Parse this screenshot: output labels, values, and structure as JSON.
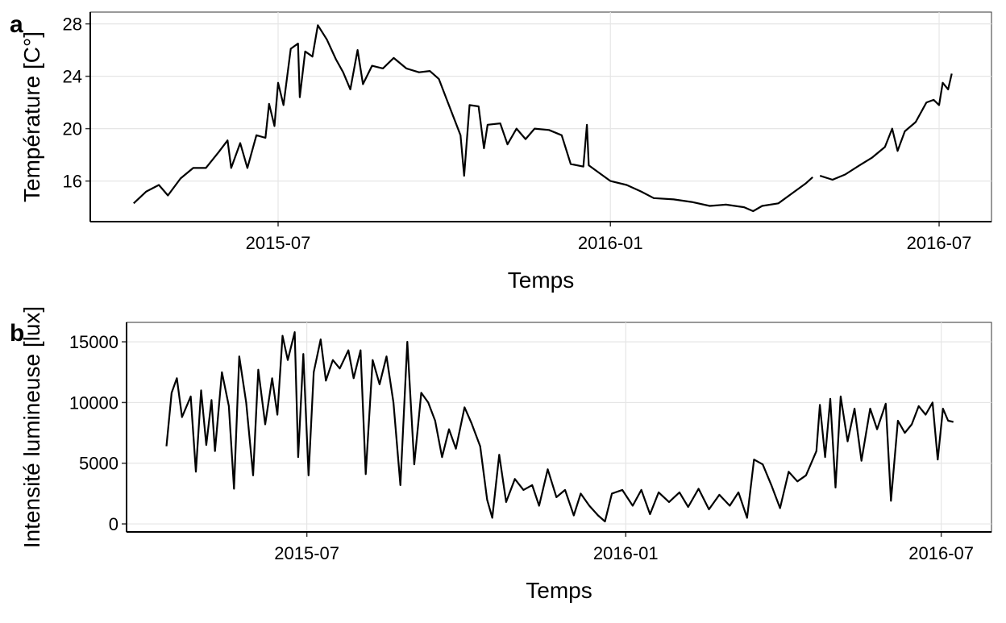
{
  "chart_data": [
    {
      "type": "line",
      "panel_label": "a",
      "xlabel": "Temps",
      "ylabel": "Température [C°]",
      "color": "#000000",
      "grid": true,
      "xlim": [
        "2015-03-19",
        "2016-07-30"
      ],
      "xticks": [
        {
          "value": "2015-07-01",
          "label": "2015-07"
        },
        {
          "value": "2016-01-01",
          "label": "2016-01"
        },
        {
          "value": "2016-07-01",
          "label": "2016-07"
        }
      ],
      "ylim": [
        12.9,
        28.9
      ],
      "yticks": [
        16,
        20,
        24,
        28
      ],
      "x": [
        "2015-04-12",
        "2015-04-19",
        "2015-04-26",
        "2015-05-01",
        "2015-05-08",
        "2015-05-15",
        "2015-05-22",
        "2015-05-29",
        "2015-06-03",
        "2015-06-05",
        "2015-06-10",
        "2015-06-14",
        "2015-06-19",
        "2015-06-24",
        "2015-06-26",
        "2015-06-29",
        "2015-07-01",
        "2015-07-04",
        "2015-07-08",
        "2015-07-12",
        "2015-07-13",
        "2015-07-16",
        "2015-07-20",
        "2015-07-23",
        "2015-07-28",
        "2015-08-02",
        "2015-08-06",
        "2015-08-10",
        "2015-08-14",
        "2015-08-17",
        "2015-08-22",
        "2015-08-28",
        "2015-09-03",
        "2015-09-10",
        "2015-09-17",
        "2015-09-23",
        "2015-09-28",
        "2015-10-03",
        "2015-10-10",
        "2015-10-12",
        "2015-10-15",
        "2015-10-20",
        "2015-10-23",
        "2015-10-25",
        "2015-11-01",
        "2015-11-05",
        "2015-11-10",
        "2015-11-15",
        "2015-11-20",
        "2015-11-28",
        "2015-12-05",
        "2015-12-10",
        "2015-12-17",
        "2015-12-19",
        "2015-12-20",
        "2015-12-26",
        "2016-01-01",
        "2016-01-10",
        "2016-01-18",
        "2016-01-25",
        "2016-02-05",
        "2016-02-15",
        "2016-02-25",
        "2016-03-05",
        "2016-03-15",
        "2016-03-20",
        "2016-03-25",
        "2016-04-03",
        "2016-04-10",
        "2016-04-18",
        "2016-04-22",
        "2016-04-24",
        "2016-04-26",
        "2016-05-03",
        "2016-05-10",
        "2016-05-18",
        "2016-05-25",
        "2016-06-01",
        "2016-06-05",
        "2016-06-08",
        "2016-06-12",
        "2016-06-18",
        "2016-06-24",
        "2016-06-28",
        "2016-07-01",
        "2016-07-03",
        "2016-07-06",
        "2016-07-08"
      ],
      "values": [
        14.3,
        15.2,
        15.7,
        14.9,
        16.2,
        17.0,
        17.0,
        18.2,
        19.1,
        17.0,
        18.9,
        17.0,
        19.5,
        19.3,
        21.9,
        20.2,
        23.5,
        21.8,
        26.1,
        26.5,
        22.4,
        25.9,
        25.5,
        27.9,
        26.8,
        25.3,
        24.3,
        23.0,
        26.0,
        23.4,
        24.8,
        24.6,
        25.4,
        24.6,
        24.3,
        24.4,
        23.8,
        22.0,
        19.5,
        16.4,
        21.8,
        21.7,
        18.5,
        20.3,
        20.4,
        18.8,
        20.0,
        19.2,
        20.0,
        19.9,
        19.5,
        17.3,
        17.1,
        20.3,
        17.2,
        16.6,
        16.0,
        15.7,
        15.2,
        14.7,
        14.6,
        14.4,
        14.1,
        14.2,
        14.0,
        13.7,
        14.1,
        14.3,
        15.0,
        15.8,
        16.3,
        null,
        16.4,
        16.1,
        16.5,
        17.2,
        17.8,
        18.6,
        20.0,
        18.3,
        19.8,
        20.5,
        22.0,
        22.2,
        21.8,
        23.5,
        23.0,
        24.2
      ]
    },
    {
      "type": "line",
      "panel_label": "b",
      "xlabel": "Temps",
      "ylabel": "Intensité lumineuse [lux]",
      "color": "#000000",
      "grid": true,
      "xlim": [
        "2015-03-19",
        "2016-07-30"
      ],
      "xticks": [
        {
          "value": "2015-07-01",
          "label": "2015-07"
        },
        {
          "value": "2016-01-01",
          "label": "2016-01"
        },
        {
          "value": "2016-07-01",
          "label": "2016-07"
        }
      ],
      "ylim": [
        -660,
        16600
      ],
      "yticks": [
        0,
        5000,
        10000,
        15000
      ],
      "x": [
        "2015-04-11",
        "2015-04-14",
        "2015-04-17",
        "2015-04-20",
        "2015-04-25",
        "2015-04-28",
        "2015-05-01",
        "2015-05-04",
        "2015-05-07",
        "2015-05-09",
        "2015-05-13",
        "2015-05-17",
        "2015-05-20",
        "2015-05-23",
        "2015-05-27",
        "2015-05-31",
        "2015-06-03",
        "2015-06-07",
        "2015-06-11",
        "2015-06-14",
        "2015-06-17",
        "2015-06-20",
        "2015-06-24",
        "2015-06-26",
        "2015-06-29",
        "2015-07-02",
        "2015-07-05",
        "2015-07-09",
        "2015-07-12",
        "2015-07-16",
        "2015-07-20",
        "2015-07-25",
        "2015-07-28",
        "2015-08-01",
        "2015-08-04",
        "2015-08-08",
        "2015-08-12",
        "2015-08-16",
        "2015-08-20",
        "2015-08-24",
        "2015-08-28",
        "2015-09-01",
        "2015-09-05",
        "2015-09-09",
        "2015-09-13",
        "2015-09-17",
        "2015-09-21",
        "2015-09-25",
        "2015-09-30",
        "2015-10-04",
        "2015-10-09",
        "2015-10-13",
        "2015-10-16",
        "2015-10-20",
        "2015-10-24",
        "2015-10-29",
        "2015-11-03",
        "2015-11-08",
        "2015-11-12",
        "2015-11-17",
        "2015-11-22",
        "2015-11-27",
        "2015-12-02",
        "2015-12-06",
        "2015-12-11",
        "2015-12-16",
        "2015-12-20",
        "2015-12-24",
        "2015-12-30",
        "2016-01-05",
        "2016-01-10",
        "2016-01-15",
        "2016-01-20",
        "2016-01-26",
        "2016-02-01",
        "2016-02-06",
        "2016-02-12",
        "2016-02-18",
        "2016-02-24",
        "2016-03-01",
        "2016-03-06",
        "2016-03-11",
        "2016-03-15",
        "2016-03-20",
        "2016-03-25",
        "2016-03-30",
        "2016-04-04",
        "2016-04-09",
        "2016-04-14",
        "2016-04-20",
        "2016-04-22",
        "2016-04-25",
        "2016-04-28",
        "2016-05-01",
        "2016-05-04",
        "2016-05-08",
        "2016-05-12",
        "2016-05-16",
        "2016-05-21",
        "2016-05-25",
        "2016-05-30",
        "2016-06-02",
        "2016-06-06",
        "2016-06-10",
        "2016-06-14",
        "2016-06-18",
        "2016-06-22",
        "2016-06-26",
        "2016-06-29",
        "2016-07-02",
        "2016-07-05",
        "2016-07-08"
      ],
      "values": [
        6400,
        10800,
        12000,
        8800,
        10500,
        4300,
        11000,
        6500,
        10200,
        6000,
        12500,
        9700,
        2900,
        13800,
        10000,
        4000,
        12700,
        8200,
        12000,
        9000,
        15500,
        13500,
        15800,
        5500,
        14000,
        4000,
        12500,
        15200,
        11800,
        13500,
        12800,
        14300,
        12000,
        14300,
        4100,
        13500,
        11500,
        13800,
        10000,
        3200,
        15000,
        4900,
        10800,
        10000,
        8500,
        5500,
        7800,
        6200,
        9600,
        8300,
        6400,
        2000,
        500,
        5700,
        1800,
        3700,
        2800,
        3200,
        1500,
        4500,
        2200,
        2800,
        700,
        2500,
        1500,
        700,
        200,
        2500,
        2800,
        1500,
        2800,
        800,
        2600,
        1800,
        2600,
        1400,
        2900,
        1200,
        2400,
        1500,
        2600,
        500,
        5300,
        4900,
        3200,
        1300,
        4300,
        3500,
        4000,
        6000,
        9800,
        5500,
        10300,
        3000,
        10500,
        6800,
        9500,
        5200,
        9500,
        7800,
        9900,
        1900,
        8500,
        7500,
        8200,
        9700,
        9000,
        10000,
        5300,
        9500,
        8500,
        8400
      ]
    }
  ]
}
